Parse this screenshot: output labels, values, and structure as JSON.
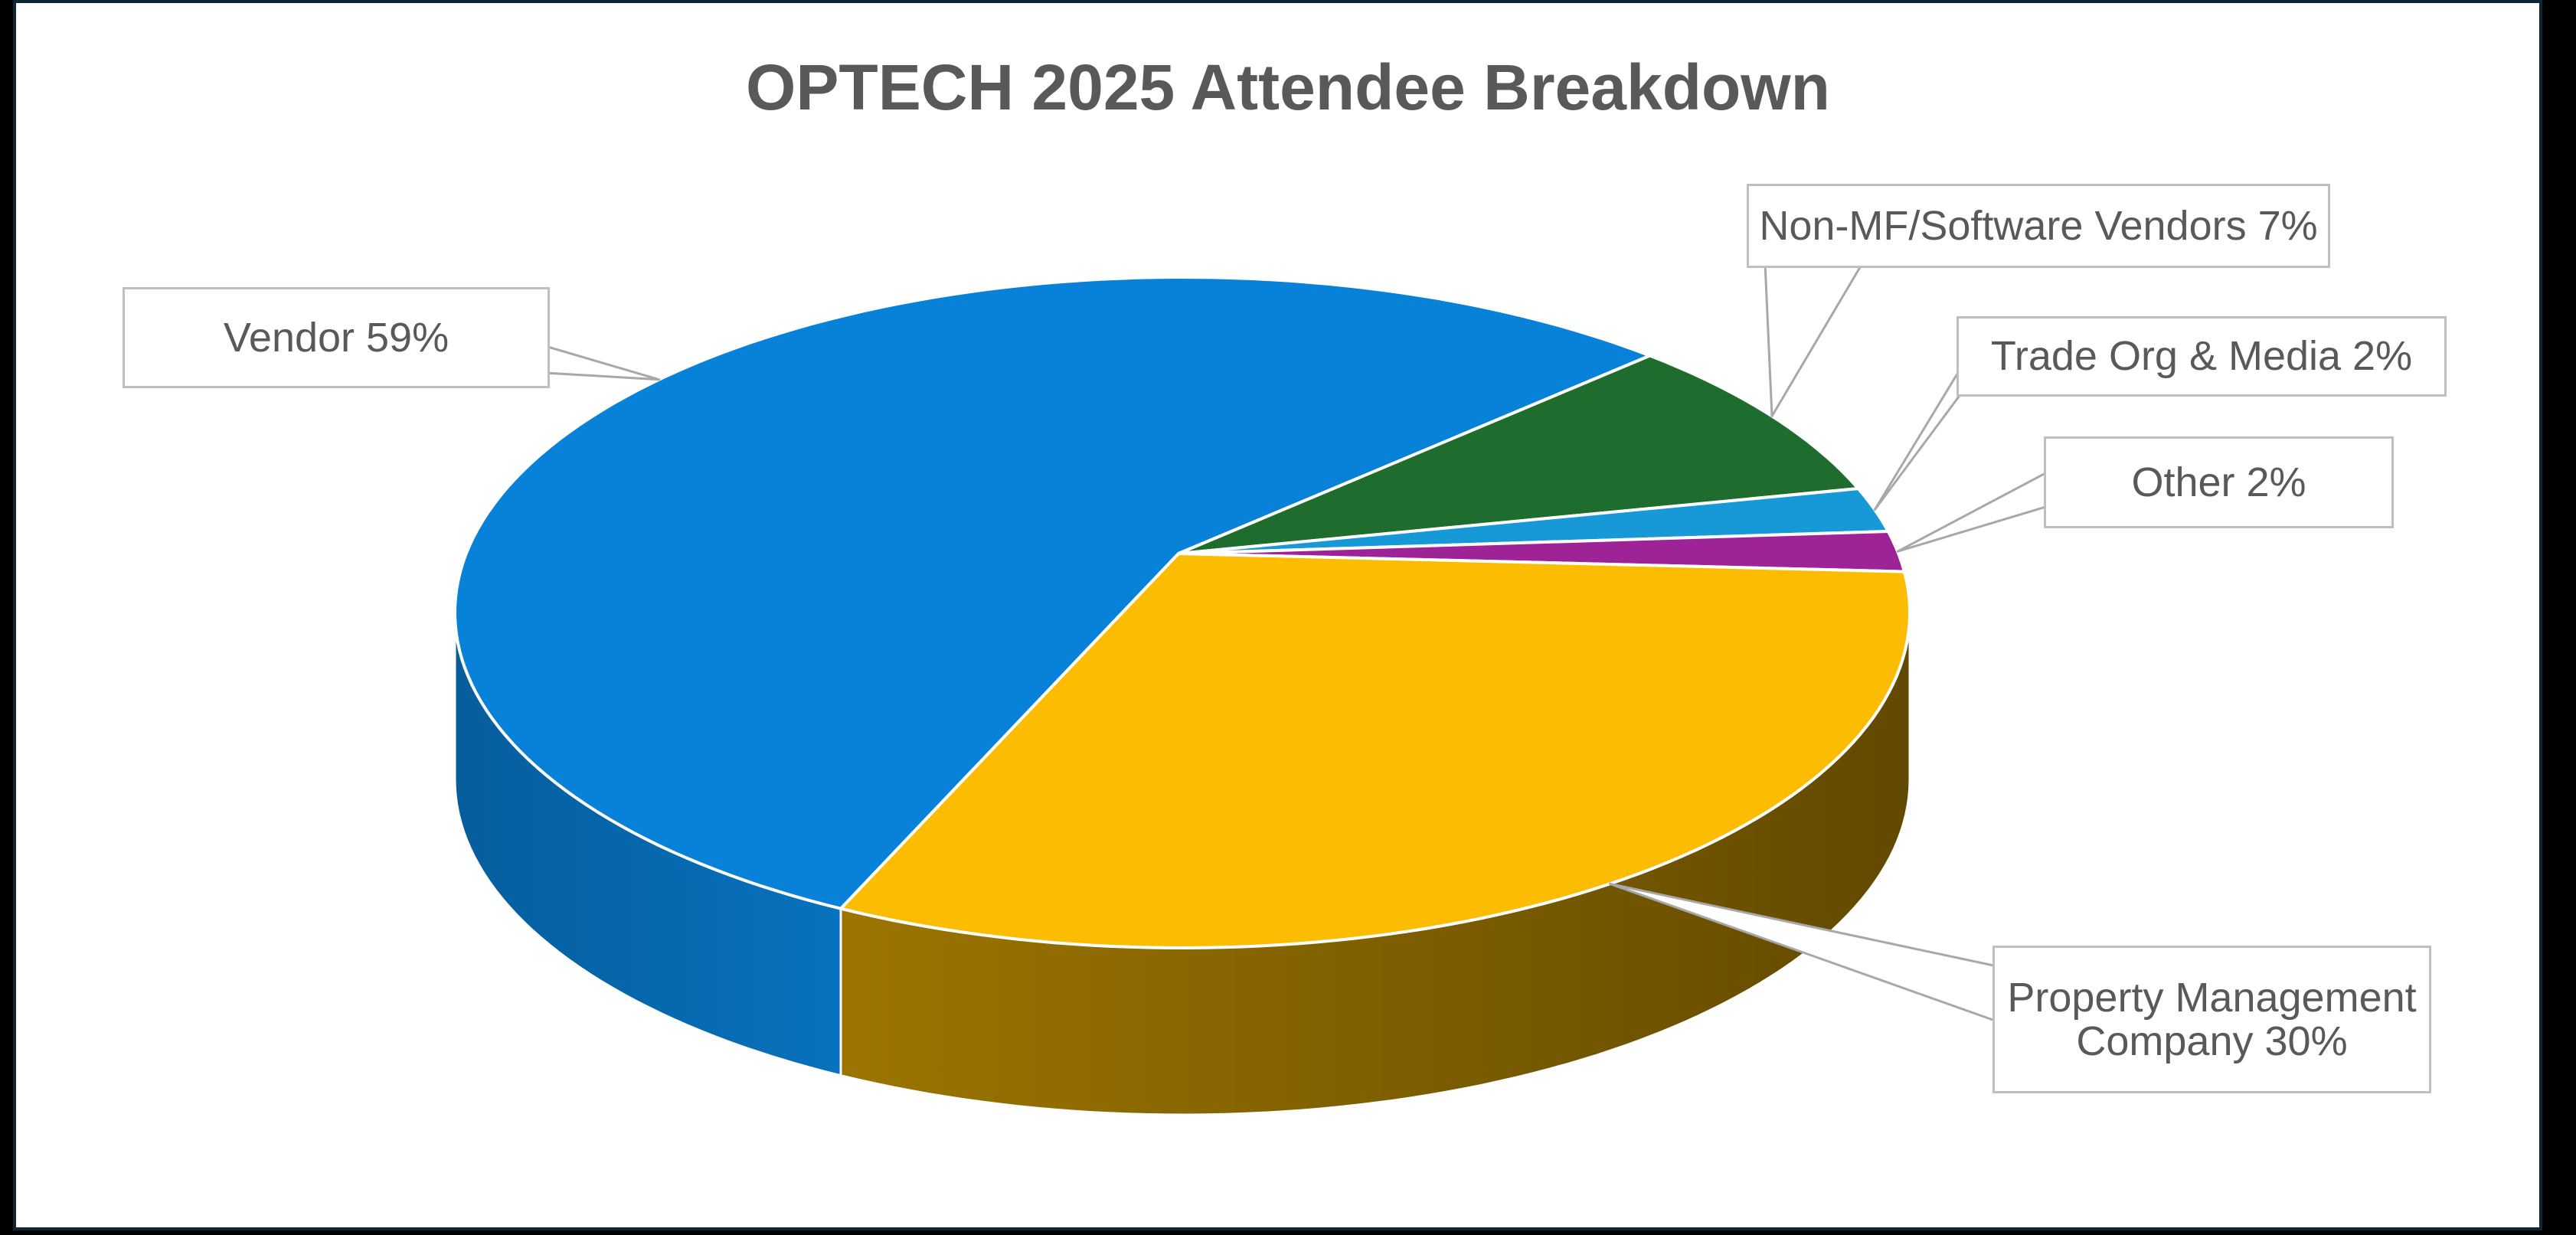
{
  "frame": {
    "outer_background": "#000000",
    "slide_border_color": "#0C2733",
    "slide_background": "#FFFFFF"
  },
  "chart_data": {
    "type": "pie",
    "style": "3d-pie",
    "title": "OPTECH 2025 Attendee Breakdown",
    "title_color": "#595959",
    "unit": "%",
    "legend_position": "callout-labels",
    "grid": "off",
    "text_color": "#595959",
    "callout_border_color": "#BFBFBF",
    "leader_line_color": "#A8A8A8",
    "slices": [
      {
        "label": "Vendor",
        "value": 59,
        "color": "#0881D8",
        "callout_lines": [
          "Vendor 59%"
        ]
      },
      {
        "label": "Non-MF/Software Vendors",
        "value": 7,
        "color": "#1E6C2E",
        "callout_lines": [
          "Non-MF/Software Vendors 7%"
        ]
      },
      {
        "label": "Trade Org & Media",
        "value": 2,
        "color": "#1699D6",
        "callout_lines": [
          "Trade Org & Media 2%"
        ]
      },
      {
        "label": "Other",
        "value": 2,
        "color": "#9D2397",
        "callout_lines": [
          "Other 2%"
        ]
      },
      {
        "label": "Property Management Company",
        "value": 30,
        "color": "#FBBC01",
        "callout_lines": [
          "Property Management",
          "Company 30%"
        ]
      }
    ]
  }
}
